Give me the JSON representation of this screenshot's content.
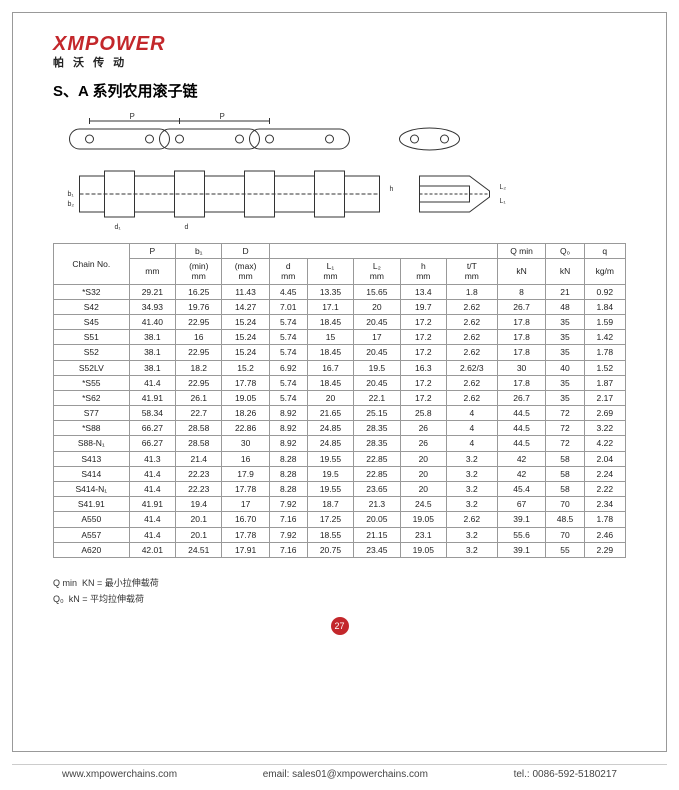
{
  "brand": {
    "logo": "XMPOWER",
    "sub": "帕 沃 传 动"
  },
  "title": "S、A 系列农用滚子链",
  "diagram_labels": [
    "P",
    "P",
    "b₁",
    "b₂",
    "d₁",
    "d",
    "h",
    "L₂",
    "L₁",
    "t"
  ],
  "table": {
    "header1": [
      "Chain No.",
      "P",
      "b₁",
      "D",
      "",
      "",
      "",
      "",
      "",
      "Q min",
      "Q₀",
      "q"
    ],
    "header2": [
      "",
      "mm",
      "(min)\nmm",
      "(max)\nmm",
      "d\nmm",
      "L₁\nmm",
      "L₂\nmm",
      "h\nmm",
      "t/T\nmm",
      "kN",
      "kN",
      "kg/m"
    ],
    "rows": [
      [
        "*S32",
        "29.21",
        "16.25",
        "11.43",
        "4.45",
        "13.35",
        "15.65",
        "13.4",
        "1.8",
        "8",
        "21",
        "0.92"
      ],
      [
        "S42",
        "34.93",
        "19.76",
        "14.27",
        "7.01",
        "17.1",
        "20",
        "19.7",
        "2.62",
        "26.7",
        "48",
        "1.84"
      ],
      [
        "S45",
        "41.40",
        "22.95",
        "15.24",
        "5.74",
        "18.45",
        "20.45",
        "17.2",
        "2.62",
        "17.8",
        "35",
        "1.59"
      ],
      [
        "S51",
        "38.1",
        "16",
        "15.24",
        "5.74",
        "15",
        "17",
        "17.2",
        "2.62",
        "17.8",
        "35",
        "1.42"
      ],
      [
        "S52",
        "38.1",
        "22.95",
        "15.24",
        "5.74",
        "18.45",
        "20.45",
        "17.2",
        "2.62",
        "17.8",
        "35",
        "1.78"
      ],
      [
        "S52LV",
        "38.1",
        "18.2",
        "15.2",
        "6.92",
        "16.7",
        "19.5",
        "16.3",
        "2.62/3",
        "30",
        "40",
        "1.52"
      ],
      [
        "*S55",
        "41.4",
        "22.95",
        "17.78",
        "5.74",
        "18.45",
        "20.45",
        "17.2",
        "2.62",
        "17.8",
        "35",
        "1.87"
      ],
      [
        "*S62",
        "41.91",
        "26.1",
        "19.05",
        "5.74",
        "20",
        "22.1",
        "17.2",
        "2.62",
        "26.7",
        "35",
        "2.17"
      ],
      [
        "S77",
        "58.34",
        "22.7",
        "18.26",
        "8.92",
        "21.65",
        "25.15",
        "25.8",
        "4",
        "44.5",
        "72",
        "2.69"
      ],
      [
        "*S88",
        "66.27",
        "28.58",
        "22.86",
        "8.92",
        "24.85",
        "28.35",
        "26",
        "4",
        "44.5",
        "72",
        "3.22"
      ],
      [
        "S88-N₁",
        "66.27",
        "28.58",
        "30",
        "8.92",
        "24.85",
        "28.35",
        "26",
        "4",
        "44.5",
        "72",
        "4.22"
      ],
      [
        "S413",
        "41.3",
        "21.4",
        "16",
        "8.28",
        "19.55",
        "22.85",
        "20",
        "3.2",
        "42",
        "58",
        "2.04"
      ],
      [
        "S414",
        "41.4",
        "22.23",
        "17.9",
        "8.28",
        "19.5",
        "22.85",
        "20",
        "3.2",
        "42",
        "58",
        "2.24"
      ],
      [
        "S414-N₁",
        "41.4",
        "22.23",
        "17.78",
        "8.28",
        "19.55",
        "23.65",
        "20",
        "3.2",
        "45.4",
        "58",
        "2.22"
      ],
      [
        "S41.91",
        "41.91",
        "19.4",
        "17",
        "7.92",
        "18.7",
        "21.3",
        "24.5",
        "3.2",
        "67",
        "70",
        "2.34"
      ],
      [
        "A550",
        "41.4",
        "20.1",
        "16.70",
        "7.16",
        "17.25",
        "20.05",
        "19.05",
        "2.62",
        "39.1",
        "48.5",
        "1.78"
      ],
      [
        "A557",
        "41.4",
        "20.1",
        "17.78",
        "7.92",
        "18.55",
        "21.15",
        "23.1",
        "3.2",
        "55.6",
        "70",
        "2.46"
      ],
      [
        "A620",
        "42.01",
        "24.51",
        "17.91",
        "7.16",
        "20.75",
        "23.45",
        "19.05",
        "3.2",
        "39.1",
        "55",
        "2.29"
      ]
    ]
  },
  "notes": {
    "n1_label": "Q min",
    "n1_text": "KN = 最小拉伸载荷",
    "n2_label": "Q₀",
    "n2_text": "kN = 平均拉伸载荷"
  },
  "page_number": "27",
  "footer": {
    "web": "www.xmpowerchains.com",
    "email_label": "email:",
    "email": "sales01@xmpowerchains.com",
    "tel_label": "tel.:",
    "tel": "0086-592-5180217"
  },
  "colors": {
    "brand_red": "#c3272b",
    "border": "#999999",
    "text": "#333333"
  }
}
